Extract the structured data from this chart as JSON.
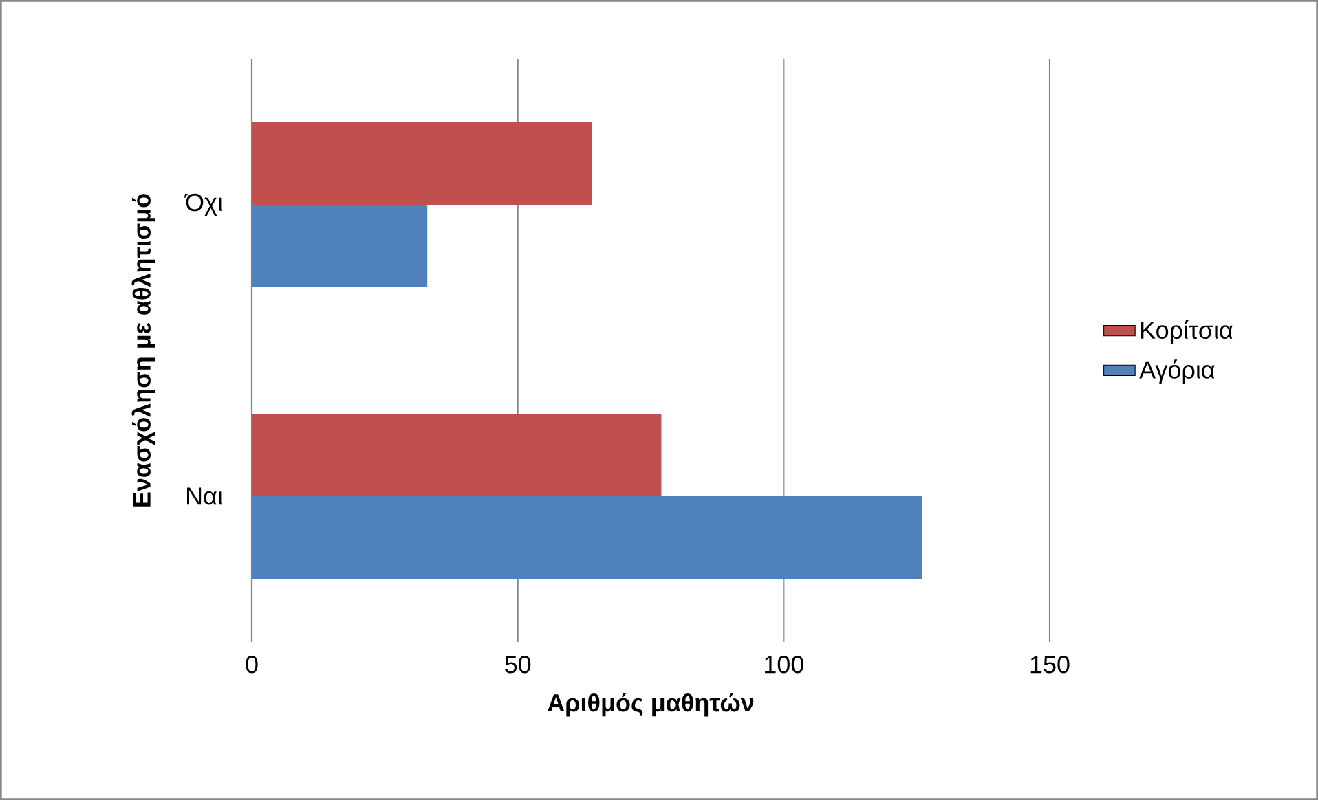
{
  "chart_data": {
    "type": "bar",
    "orientation": "horizontal",
    "categories": [
      "Όχι",
      "Ναι"
    ],
    "series": [
      {
        "name": "Κορίτσια",
        "color": "#c0504d",
        "values": [
          64,
          77
        ]
      },
      {
        "name": "Αγόρια",
        "color": "#4f81bd",
        "values": [
          33,
          126
        ]
      }
    ],
    "xlabel": "Αριθμός μαθητών",
    "ylabel": "Ενασχόληση με αθλητισμό",
    "xlim": [
      0,
      150
    ],
    "xticks": [
      0,
      50,
      100,
      150
    ],
    "grid": "x",
    "legend": "right"
  }
}
